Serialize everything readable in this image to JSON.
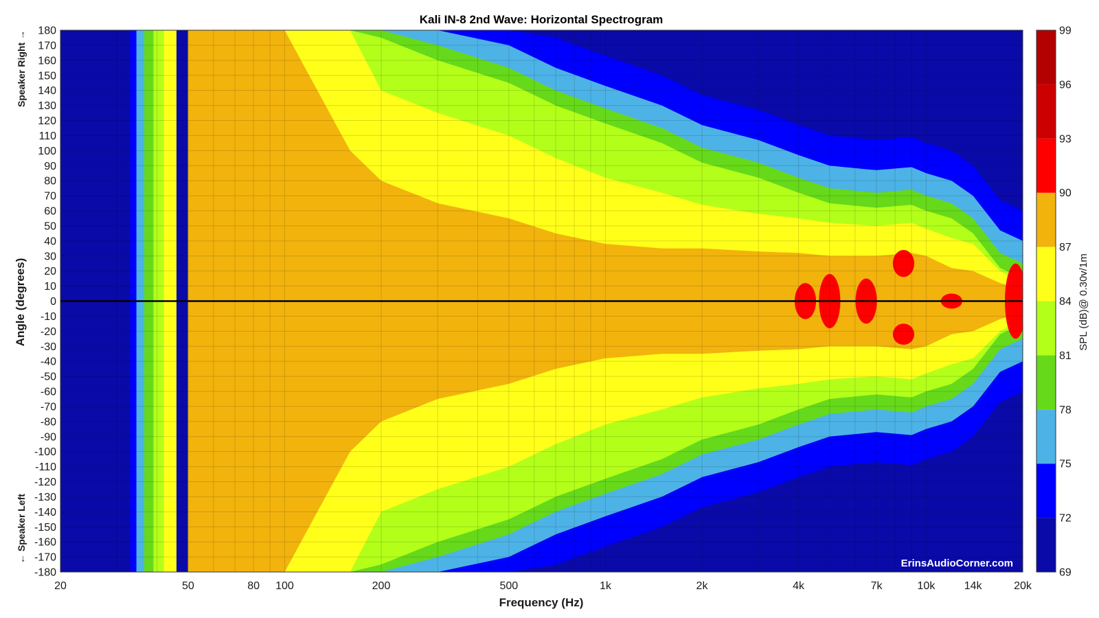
{
  "chart_data": {
    "type": "heatmap",
    "title": "Kali IN-8 2nd Wave: Horizontal Spectrogram",
    "xlabel": "Frequency (Hz)",
    "ylabel": "Angle (degrees)",
    "x_scale": "log",
    "xlim": [
      20,
      20000
    ],
    "ylim": [
      -180,
      180
    ],
    "x_ticks": [
      {
        "value": 20,
        "label": "20"
      },
      {
        "value": 50,
        "label": "50"
      },
      {
        "value": 80,
        "label": "80"
      },
      {
        "value": 100,
        "label": "100"
      },
      {
        "value": 200,
        "label": "200"
      },
      {
        "value": 500,
        "label": "500"
      },
      {
        "value": 1000,
        "label": "1k"
      },
      {
        "value": 2000,
        "label": "2k"
      },
      {
        "value": 4000,
        "label": "4k"
      },
      {
        "value": 7000,
        "label": "7k"
      },
      {
        "value": 10000,
        "label": "10k"
      },
      {
        "value": 14000,
        "label": "14k"
      },
      {
        "value": 20000,
        "label": "20k"
      }
    ],
    "y_ticks": [
      180,
      170,
      160,
      150,
      140,
      130,
      120,
      110,
      100,
      90,
      80,
      70,
      60,
      50,
      40,
      30,
      20,
      10,
      0,
      -10,
      -20,
      -30,
      -40,
      -50,
      -60,
      -70,
      -80,
      -90,
      -100,
      -110,
      -120,
      -130,
      -140,
      -150,
      -160,
      -170,
      -180
    ],
    "y_side_labels": {
      "top": "Speaker Right →",
      "bottom": "← Speaker Left"
    },
    "grid": true,
    "reference_line_y": 0,
    "colorbar": {
      "label": "SPL (dB)@ 0.30v/1m",
      "levels": [
        69,
        72,
        75,
        78,
        81,
        84,
        87,
        90,
        93,
        96,
        99
      ],
      "colors": [
        "#0A0AA8",
        "#0000FF",
        "#4DB3E6",
        "#66D91A",
        "#B3FF1A",
        "#FFFF1A",
        "#F2B30D",
        "#FF0000",
        "#CC0000",
        "#B30000"
      ]
    },
    "beamwidth_contours_deg": {
      "freq_hz": [
        20,
        30,
        50,
        100,
        160,
        200,
        300,
        500,
        700,
        1000,
        1500,
        2000,
        3000,
        4000,
        5000,
        7000,
        9000,
        10000,
        12000,
        14000,
        17000,
        20000
      ],
      "spl_81": [
        180,
        180,
        180,
        180,
        180,
        175,
        160,
        145,
        130,
        118,
        105,
        92,
        82,
        72,
        65,
        62,
        64,
        60,
        55,
        45,
        22,
        15
      ],
      "spl_84": [
        180,
        180,
        180,
        180,
        180,
        140,
        125,
        110,
        95,
        82,
        72,
        64,
        58,
        55,
        52,
        50,
        52,
        48,
        42,
        38,
        20,
        12
      ],
      "spl_87": [
        0,
        0,
        180,
        180,
        100,
        80,
        65,
        55,
        45,
        38,
        35,
        35,
        33,
        32,
        30,
        30,
        32,
        30,
        22,
        20,
        12,
        8
      ],
      "spl_90_spots": [
        {
          "freq_hz": 4200,
          "angle_deg": 0,
          "half_width_deg": 12
        },
        {
          "freq_hz": 5000,
          "angle_deg": 0,
          "half_width_deg": 18
        },
        {
          "freq_hz": 6500,
          "angle_deg": 0,
          "half_width_deg": 15
        },
        {
          "freq_hz": 8500,
          "angle_deg": 25,
          "half_width_deg": 9
        },
        {
          "freq_hz": 8500,
          "angle_deg": -22,
          "half_width_deg": 7
        },
        {
          "freq_hz": 12000,
          "angle_deg": 0,
          "half_width_deg": 5
        },
        {
          "freq_hz": 19000,
          "angle_deg": 0,
          "half_width_deg": 25
        }
      ]
    },
    "watermark": "ErinsAudioCorner.com"
  }
}
